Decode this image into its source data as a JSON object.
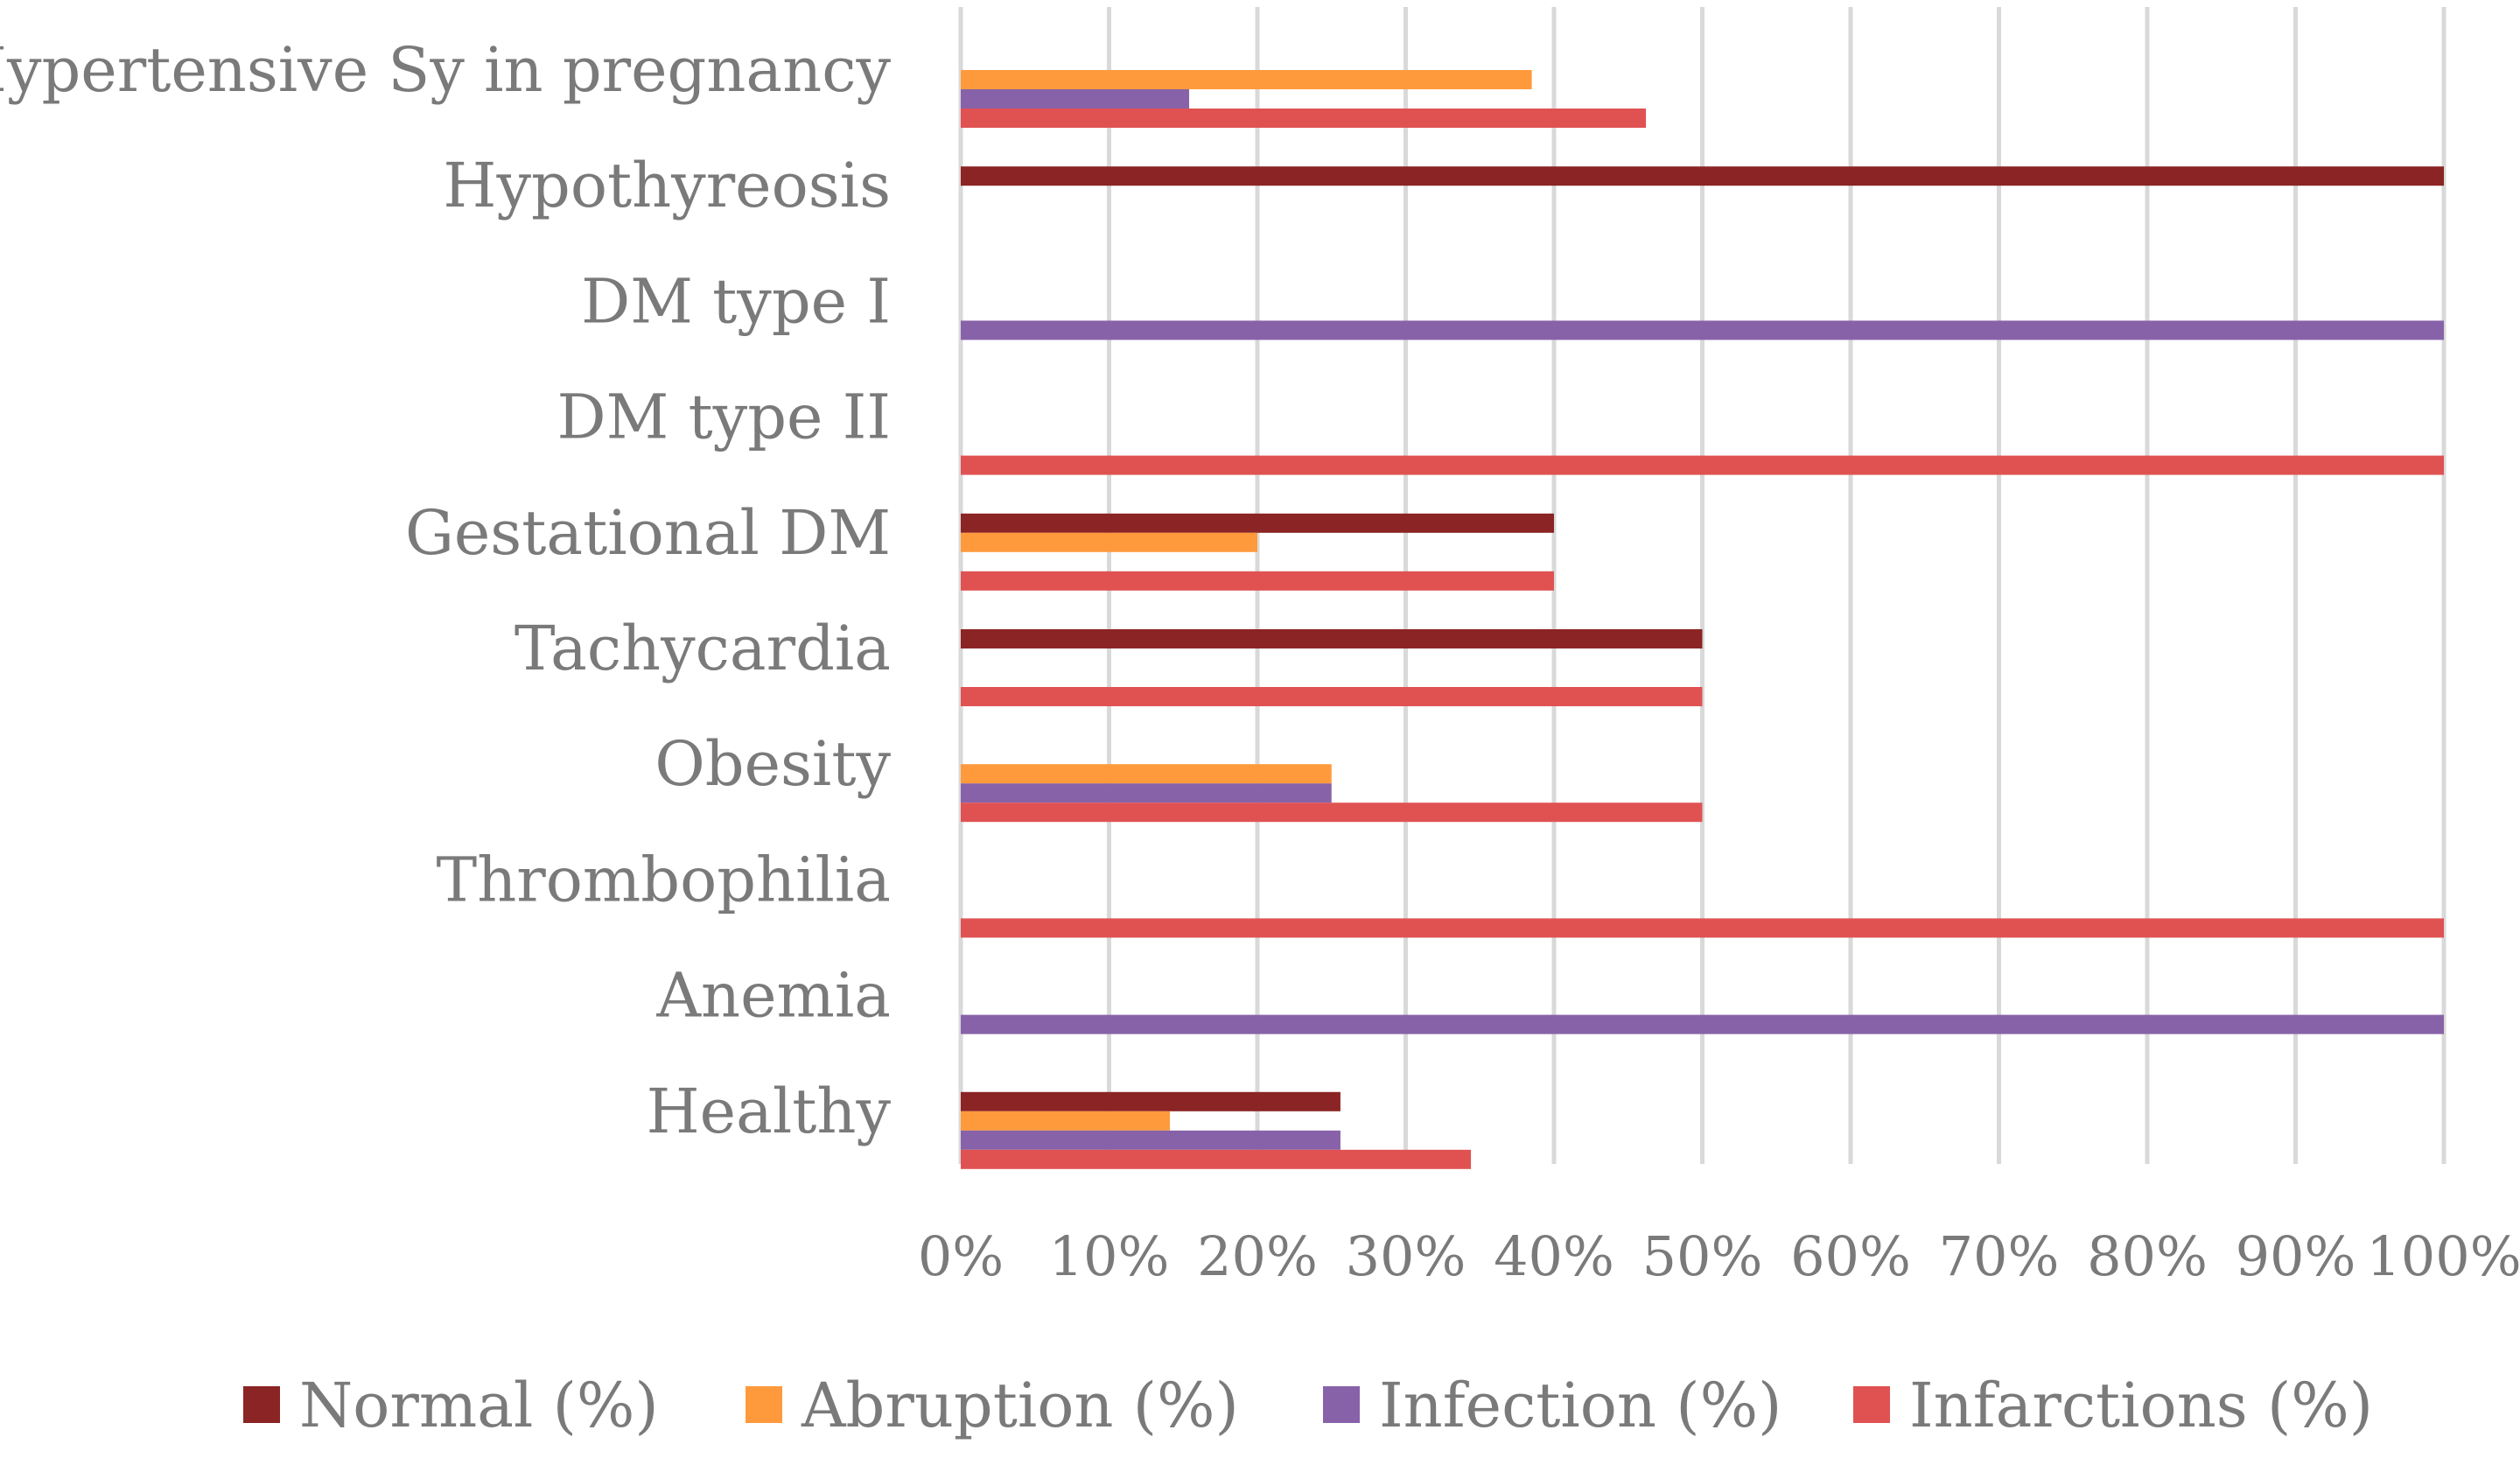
{
  "chart_data": {
    "type": "bar",
    "orientation": "horizontal",
    "title": "",
    "xlabel": "",
    "ylabel": "",
    "xlim": [
      0,
      100
    ],
    "ticks": [
      "0%",
      "10%",
      "20%",
      "30%",
      "40%",
      "50%",
      "60%",
      "70%",
      "80%",
      "90%",
      "100%"
    ],
    "tick_values": [
      0,
      10,
      20,
      30,
      40,
      50,
      60,
      70,
      80,
      90,
      100
    ],
    "grid": true,
    "legend_position": "bottom",
    "categories": [
      "Hypertensive Sy in pregnancy",
      "Hypothyreosis",
      "DM type I",
      "DM type II",
      "Gestational DM",
      "Tachycardia",
      "Obesity",
      "Thrombophilia",
      "Anemia",
      "Healthy"
    ],
    "series": [
      {
        "name": "Normal (%)",
        "color": "#8b2424",
        "values": [
          0,
          100,
          0,
          0,
          40,
          50,
          0,
          0,
          0,
          25.6
        ]
      },
      {
        "name": "Abruption (%)",
        "color": "#ff9a3c",
        "values": [
          38.5,
          0,
          0,
          0,
          20,
          0,
          25,
          0,
          0,
          14.1
        ]
      },
      {
        "name": "Infection (%)",
        "color": "#8762a8",
        "values": [
          15.4,
          0,
          100,
          0,
          0,
          0,
          25,
          0,
          100,
          25.6
        ]
      },
      {
        "name": "Infarctions (%)",
        "color": "#e05252",
        "values": [
          46.2,
          0,
          0,
          100,
          40,
          50,
          50,
          100,
          0,
          34.4
        ]
      }
    ]
  }
}
